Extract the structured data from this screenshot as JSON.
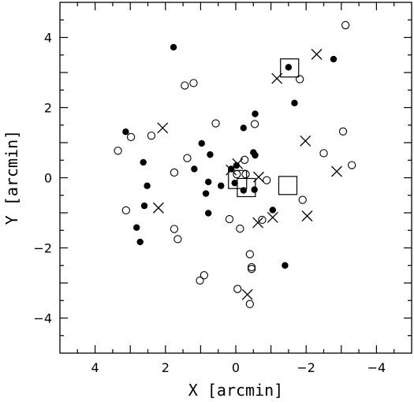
{
  "chart_data": {
    "type": "scatter",
    "xlabel": "X [arcmin]",
    "ylabel": "Y [arcmin]",
    "xlim": [
      5,
      -5
    ],
    "ylim": [
      -5,
      5
    ],
    "x_ticks": [
      4,
      2,
      0,
      -2,
      -4
    ],
    "y_ticks": [
      -4,
      -2,
      0,
      2,
      4
    ],
    "x_tick_labels": [
      "4",
      "2",
      "0",
      "−2",
      "−4"
    ],
    "y_tick_labels": [
      "−4",
      "−2",
      "0",
      "2",
      "4"
    ],
    "series": [
      {
        "marker": "filled-circle",
        "points": [
          [
            1.77,
            3.72
          ],
          [
            -1.5,
            3.15
          ],
          [
            -2.78,
            3.38
          ],
          [
            -1.67,
            2.13
          ],
          [
            -0.55,
            1.82
          ],
          [
            -0.22,
            1.42
          ],
          [
            3.13,
            1.31
          ],
          [
            0.97,
            0.98
          ],
          [
            -0.5,
            0.72
          ],
          [
            -0.55,
            0.64
          ],
          [
            0.73,
            0.66
          ],
          [
            2.63,
            0.44
          ],
          [
            0.13,
            0.25
          ],
          [
            -0.02,
            0.35
          ],
          [
            1.18,
            0.25
          ],
          [
            0.78,
            -0.12
          ],
          [
            0.42,
            -0.23
          ],
          [
            0.03,
            -0.15
          ],
          [
            2.52,
            -0.23
          ],
          [
            0.85,
            -0.45
          ],
          [
            -0.22,
            -0.36
          ],
          [
            -0.53,
            -0.34
          ],
          [
            2.6,
            -0.8
          ],
          [
            0.78,
            -1.01
          ],
          [
            -1.05,
            -0.92
          ],
          [
            2.82,
            -1.42
          ],
          [
            2.72,
            -1.83
          ],
          [
            -1.4,
            -2.5
          ]
        ]
      },
      {
        "marker": "open-circle",
        "points": [
          [
            -3.12,
            4.35
          ],
          [
            -1.82,
            2.81
          ],
          [
            1.45,
            2.63
          ],
          [
            1.2,
            2.7
          ],
          [
            0.57,
            1.55
          ],
          [
            -0.54,
            1.53
          ],
          [
            2.4,
            1.2
          ],
          [
            3.35,
            0.77
          ],
          [
            2.98,
            1.16
          ],
          [
            -3.05,
            1.32
          ],
          [
            -2.5,
            0.7
          ],
          [
            1.38,
            0.56
          ],
          [
            -3.3,
            0.36
          ],
          [
            -0.25,
            0.51
          ],
          [
            1.75,
            0.15
          ],
          [
            -0.03,
            0.1
          ],
          [
            -0.28,
            0.1
          ],
          [
            -0.88,
            -0.07
          ],
          [
            -1.9,
            -0.63
          ],
          [
            3.12,
            -0.93
          ],
          [
            0.18,
            -1.18
          ],
          [
            -0.75,
            -1.2
          ],
          [
            1.75,
            -1.46
          ],
          [
            1.65,
            -1.75
          ],
          [
            -0.12,
            -1.45
          ],
          [
            -0.4,
            -2.18
          ],
          [
            -0.45,
            -2.55
          ],
          [
            -0.45,
            -2.6
          ],
          [
            0.9,
            -2.78
          ],
          [
            1.02,
            -2.93
          ],
          [
            -0.05,
            -3.17
          ],
          [
            -0.4,
            -3.6
          ]
        ]
      },
      {
        "marker": "cross",
        "points": [
          [
            -2.3,
            3.52
          ],
          [
            -1.17,
            2.83
          ],
          [
            2.08,
            1.42
          ],
          [
            -1.98,
            1.05
          ],
          [
            0.13,
            0.22
          ],
          [
            -0.05,
            0.4
          ],
          [
            -0.65,
            0.02
          ],
          [
            -2.87,
            0.18
          ],
          [
            2.2,
            -0.86
          ],
          [
            -1.05,
            -1.13
          ],
          [
            -2.03,
            -1.09
          ],
          [
            -0.63,
            -1.28
          ],
          [
            -0.33,
            -3.33
          ]
        ]
      },
      {
        "marker": "open-square",
        "points": [
          [
            -1.53,
            3.13
          ],
          [
            -0.05,
            -0.05
          ],
          [
            -0.3,
            -0.28
          ],
          [
            -1.48,
            -0.22
          ]
        ]
      }
    ]
  }
}
